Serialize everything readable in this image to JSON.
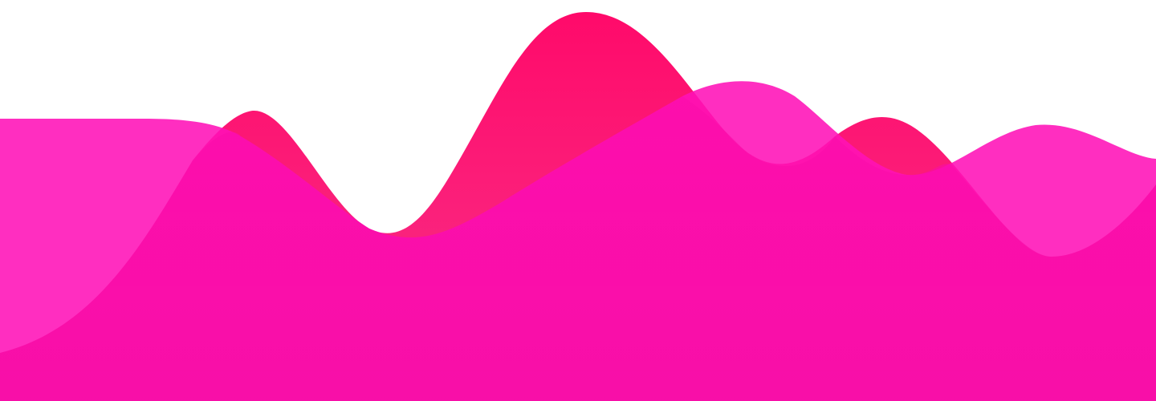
{
  "page": {
    "background": "#ffffff"
  },
  "palette": {
    "back_wave_top": "#ff0a6a",
    "back_wave_bottom": "#f7348a",
    "front_wave": "#ff11b7",
    "base_top": "#fb0cab",
    "base_bottom": "#f20aa0",
    "front_wave_opacity": 0.88
  }
}
